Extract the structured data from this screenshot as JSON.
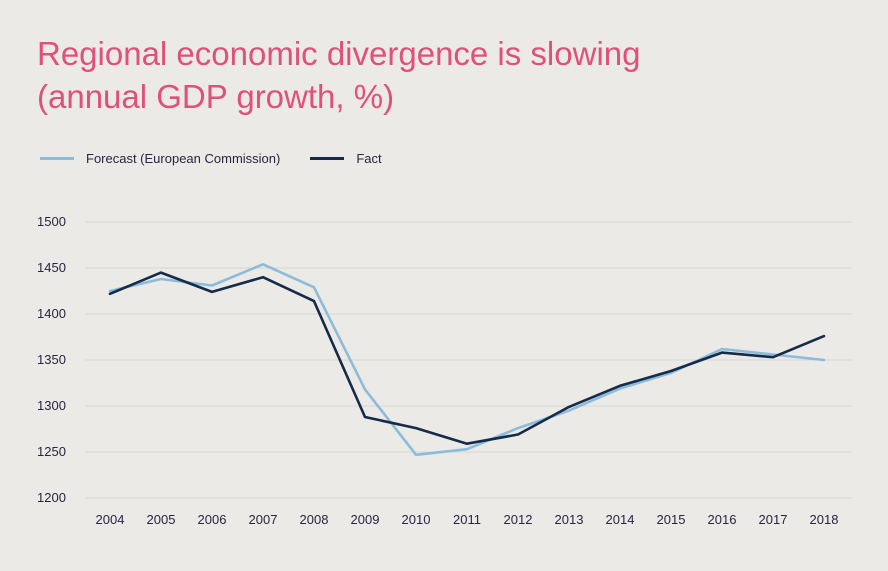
{
  "title": {
    "line1": "Regional economic divergence is slowing",
    "line2": "(annual GDP growth, %)"
  },
  "colors": {
    "title": "#e0517a",
    "forecast": "#8dbcda",
    "fact": "#162a4a",
    "grid": "#d6d5d1"
  },
  "chart_data": {
    "type": "line",
    "categories": [
      "2004",
      "2005",
      "2006",
      "2007",
      "2008",
      "2009",
      "2010",
      "2011",
      "2012",
      "2013",
      "2014",
      "2015",
      "2016",
      "2017",
      "2018"
    ],
    "series": [
      {
        "name": "Forecast (European Commission)",
        "values": [
          1425,
          1438,
          1431,
          1454,
          1429,
          1318,
          1247,
          1253,
          1276,
          1295,
          1319,
          1336,
          1362,
          1356,
          1350
        ]
      },
      {
        "name": "Fact",
        "values": [
          1422,
          1445,
          1424,
          1440,
          1414,
          1288,
          1276,
          1259,
          1269,
          1299,
          1322,
          1338,
          1358,
          1353,
          1376
        ]
      }
    ],
    "ylim": [
      1200,
      1500
    ],
    "yticks": [
      1200,
      1250,
      1300,
      1350,
      1400,
      1450,
      1500
    ],
    "grid": true,
    "legend_position": "top-left"
  }
}
